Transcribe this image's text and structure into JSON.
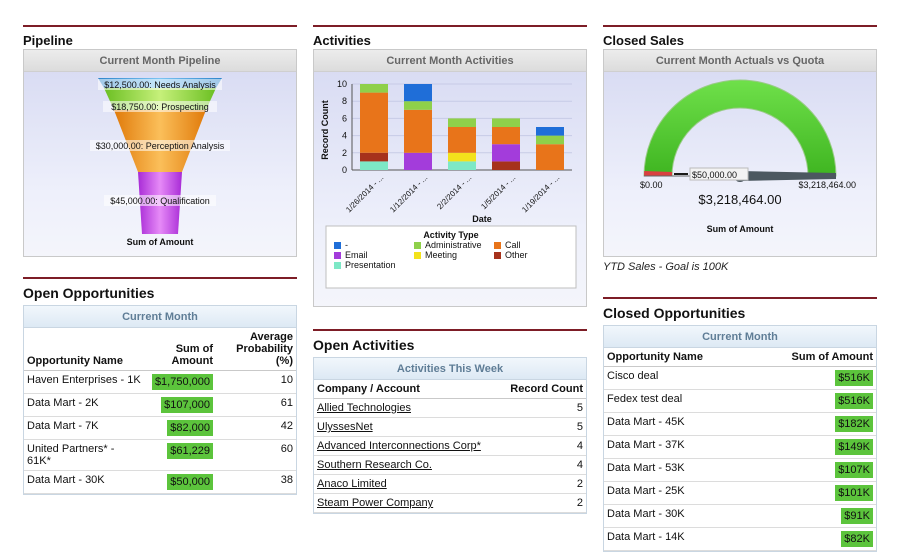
{
  "pipeline": {
    "title": "Pipeline",
    "chart_title": "Current Month Pipeline",
    "stages": [
      {
        "label": "$12,500.00: Needs Analysis",
        "value": 12500
      },
      {
        "label": "$18,750.00: Prospecting",
        "value": 18750
      },
      {
        "label": "$30,000.00: Perception Analysis",
        "value": 30000
      },
      {
        "label": "$45,000.00: Qualification",
        "value": 45000
      }
    ],
    "xlabel": "Sum of Amount",
    "colors": [
      "#4aa4e0",
      "#9ce04c",
      "#f59a1c",
      "#c54fe6"
    ]
  },
  "activities": {
    "title": "Activities",
    "chart_title": "Current Month Activities",
    "xlabel": "Date",
    "ylabel": "Record Count",
    "legend_title": "Activity Type",
    "legend": [
      {
        "name": "-",
        "color": "#1f6ed8"
      },
      {
        "name": "Administrative",
        "color": "#8fd04a"
      },
      {
        "name": "Call",
        "color": "#e8741a"
      },
      {
        "name": "Email",
        "color": "#a33cdb"
      },
      {
        "name": "Meeting",
        "color": "#f3e21c"
      },
      {
        "name": "Other",
        "color": "#a6321c"
      },
      {
        "name": "Presentation",
        "color": "#7de8c6"
      }
    ]
  },
  "chart_data": {
    "type": "bar",
    "stacked": true,
    "title": "Current Month Activities",
    "xlabel": "Date",
    "ylabel": "Record Count",
    "ylim": [
      0,
      10
    ],
    "yticks": [
      "0",
      "2",
      "4",
      "6",
      "8",
      "10"
    ],
    "categories": [
      "1/26/2014 - ...",
      "1/12/2014 - ...",
      "2/2/2014 - ...",
      "1/5/2014 - ...",
      "1/19/2014 - ..."
    ],
    "series": [
      {
        "name": "Presentation",
        "values": [
          1,
          0,
          1,
          0,
          0
        ]
      },
      {
        "name": "Other",
        "values": [
          1,
          0,
          0,
          1,
          0
        ]
      },
      {
        "name": "Email",
        "values": [
          0,
          2,
          0,
          2,
          0
        ]
      },
      {
        "name": "Meeting",
        "values": [
          0,
          0,
          1,
          0,
          0
        ]
      },
      {
        "name": "Call",
        "values": [
          7,
          5,
          3,
          2,
          3
        ]
      },
      {
        "name": "Administrative",
        "values": [
          1,
          1,
          1,
          1,
          1
        ]
      },
      {
        "name": "-",
        "values": [
          0,
          2,
          0,
          0,
          1
        ]
      }
    ]
  },
  "closed_sales": {
    "title": "Closed Sales",
    "chart_title": "Current Month Actuals vs Quota",
    "min_label": "$0.00",
    "max_label": "$3,218,464.00",
    "marker_label": "$50,000.00",
    "value_label": "$3,218,464.00",
    "xlabel": "Sum of Amount",
    "footnote": "YTD Sales - Goal is 100K",
    "value": 3218464,
    "max": 3218464,
    "marker": 50000
  },
  "open_opps": {
    "title": "Open Opportunities",
    "caption": "Current Month",
    "headers": [
      "Opportunity Name",
      "Sum of Amount",
      "Average Probability (%)"
    ],
    "rows": [
      {
        "name": "Haven Enterprises - 1K",
        "amount": "$1,750,000",
        "prob": "10"
      },
      {
        "name": "Data Mart - 2K",
        "amount": "$107,000",
        "prob": "61"
      },
      {
        "name": "Data Mart - 7K",
        "amount": "$82,000",
        "prob": "42"
      },
      {
        "name": "United Partners* - 61K*",
        "amount": "$61,229",
        "prob": "60"
      },
      {
        "name": "Data Mart - 30K",
        "amount": "$50,000",
        "prob": "38"
      }
    ]
  },
  "open_acts": {
    "title": "Open Activities",
    "caption": "Activities This Week",
    "headers": [
      "Company / Account",
      "Record Count"
    ],
    "rows": [
      {
        "name": "Allied Technologies",
        "count": "5"
      },
      {
        "name": "UlyssesNet",
        "count": "5"
      },
      {
        "name": "Advanced Interconnections Corp*",
        "count": "4"
      },
      {
        "name": "Southern Research Co.",
        "count": "4"
      },
      {
        "name": "Anaco Limited",
        "count": "2"
      },
      {
        "name": "Steam Power Company",
        "count": "2"
      }
    ]
  },
  "closed_opps": {
    "title": "Closed Opportunities",
    "caption": "Current Month",
    "headers": [
      "Opportunity Name",
      "Sum of Amount"
    ],
    "rows": [
      {
        "name": "Cisco deal",
        "amount": "$516K"
      },
      {
        "name": "Fedex test deal",
        "amount": "$516K"
      },
      {
        "name": "Data Mart - 45K",
        "amount": "$182K"
      },
      {
        "name": "Data Mart - 37K",
        "amount": "$149K"
      },
      {
        "name": "Data Mart - 53K",
        "amount": "$107K"
      },
      {
        "name": "Data Mart - 25K",
        "amount": "$101K"
      },
      {
        "name": "Data Mart - 30K",
        "amount": "$91K"
      },
      {
        "name": "Data Mart - 14K",
        "amount": "$82K"
      }
    ]
  }
}
